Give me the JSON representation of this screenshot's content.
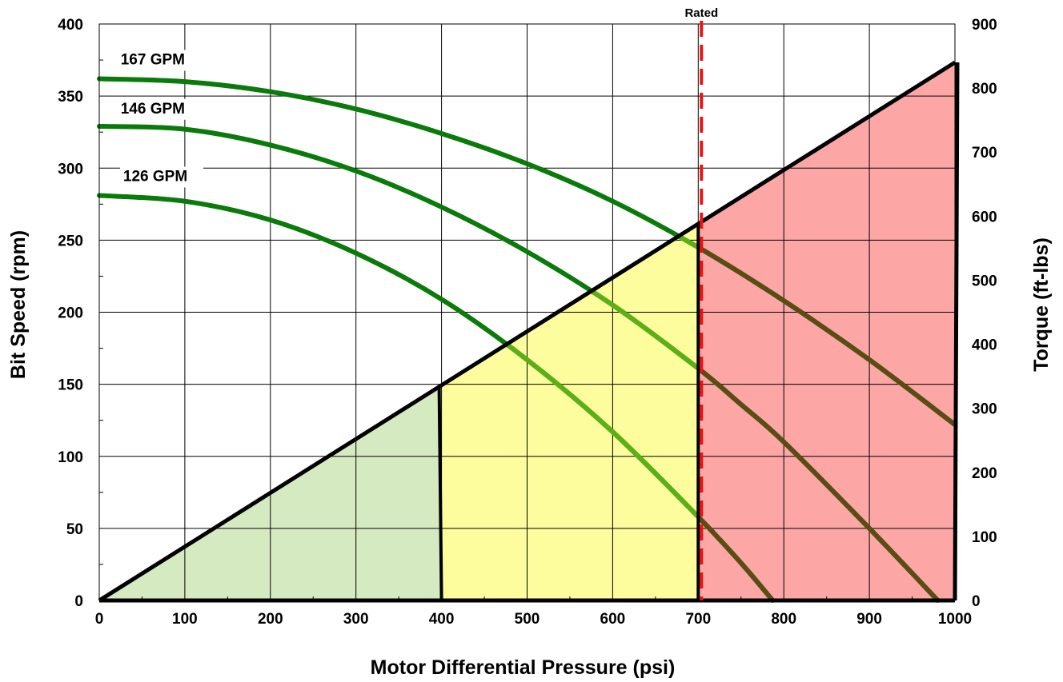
{
  "chart_data": {
    "type": "line",
    "xlabel": "Motor Differential Pressure (psi)",
    "ylabel": "Bit Speed (rpm)",
    "y2label": "Torque (ft-lbs)",
    "xlim": [
      0,
      1000
    ],
    "ylim": [
      0,
      400
    ],
    "y2lim": [
      0,
      900
    ],
    "x_ticks": [
      0,
      100,
      200,
      300,
      400,
      500,
      600,
      700,
      800,
      900,
      1000
    ],
    "y_ticks": [
      0,
      50,
      100,
      150,
      200,
      250,
      300,
      350,
      400
    ],
    "y2_ticks": [
      0,
      100,
      200,
      300,
      400,
      500,
      600,
      700,
      800,
      900
    ],
    "grid": true,
    "series": [
      {
        "name": "167 GPM",
        "color": "#0a7a0a",
        "x": [
          0,
          100,
          200,
          300,
          400,
          500,
          600,
          700,
          800,
          900,
          1000
        ],
        "y": [
          362,
          360,
          353,
          341,
          324,
          303,
          277,
          245,
          208,
          167,
          122
        ]
      },
      {
        "name": "146 GPM",
        "color": "#0a7a0a",
        "x": [
          0,
          100,
          200,
          300,
          400,
          500,
          600,
          700,
          750,
          800,
          900,
          980
        ],
        "y": [
          329,
          327,
          316,
          298,
          273,
          242,
          205,
          161,
          136,
          110,
          50,
          0
        ]
      },
      {
        "name": "126 GPM",
        "color": "#0a7a0a",
        "x": [
          0,
          100,
          200,
          300,
          400,
          500,
          600,
          700,
          750,
          787
        ],
        "y": [
          281,
          277,
          264,
          241,
          209,
          167,
          117,
          58,
          26,
          0
        ]
      }
    ],
    "torque": {
      "name": "Torque",
      "x": [
        0,
        1000
      ],
      "y": [
        0,
        840
      ]
    },
    "zones": [
      {
        "name": "green",
        "x_start": 0,
        "x_end": 400,
        "color": "#d6eac2"
      },
      {
        "name": "yellow",
        "x_start": 400,
        "x_end": 700,
        "color": "#fdfd9e"
      },
      {
        "name": "red",
        "x_start": 700,
        "x_end": 1000,
        "color": "#fca6a6"
      }
    ],
    "rated": {
      "label": "Rated",
      "x": 700,
      "color": "#ee1111"
    },
    "curve_labels": [
      {
        "text": "167 GPM",
        "x": 25,
        "y": 372
      },
      {
        "text": "146 GPM",
        "x": 25,
        "y": 338
      },
      {
        "text": "126 GPM",
        "x": 28,
        "y": 291
      }
    ]
  }
}
